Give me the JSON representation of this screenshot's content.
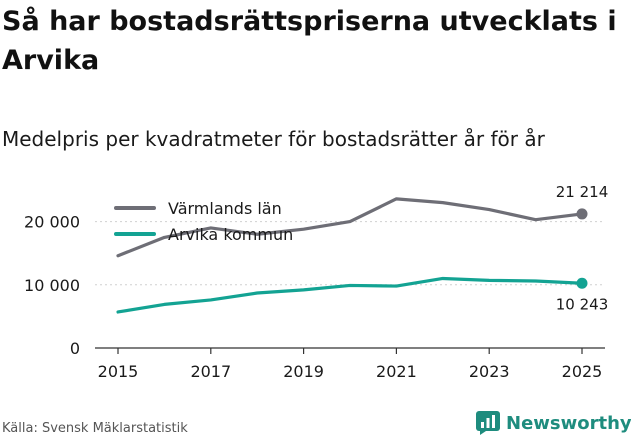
{
  "header": {
    "title": "Så har bostadsrättspriserna utvecklats i Arvika",
    "subtitle": "Medelpris per kvadratmeter för bostadsrätter år för år"
  },
  "footer": {
    "source": "Källa: Svensk Mäklarstatistik",
    "brand": "Newsworthy"
  },
  "colors": {
    "varmland": "#6e6e76",
    "arvika": "#13a393",
    "grid": "#d0d0d0",
    "axis": "#333333"
  },
  "chart_data": {
    "type": "line",
    "title": "Så har bostadsrättspriserna utvecklats i Arvika",
    "subtitle": "Medelpris per kvadratmeter för bostadsrätter år för år",
    "xlabel": "",
    "ylabel": "",
    "x": [
      2015,
      2016,
      2017,
      2018,
      2019,
      2020,
      2021,
      2022,
      2023,
      2024,
      2025
    ],
    "xticks": [
      "2015",
      "2017",
      "2019",
      "2021",
      "2023",
      "2025"
    ],
    "xlim": [
      2015,
      2025
    ],
    "yticks": [
      {
        "value": 0,
        "label": "0"
      },
      {
        "value": 10000,
        "label": "10 000"
      },
      {
        "value": 20000,
        "label": "20 000"
      }
    ],
    "ylim": [
      0,
      25000
    ],
    "legend_position": "top-left",
    "series": [
      {
        "name": "Värmlands län",
        "color": "#6e6e76",
        "values": [
          14600,
          17500,
          19000,
          18000,
          18800,
          20000,
          23600,
          23000,
          21900,
          20300,
          21214
        ],
        "end_label": "21 214",
        "end_label_position": "above"
      },
      {
        "name": "Arvika kommun",
        "color": "#13a393",
        "values": [
          5700,
          6900,
          7600,
          8700,
          9200,
          9900,
          9800,
          11000,
          10700,
          10600,
          10243
        ],
        "end_label": "10 243",
        "end_label_position": "below"
      }
    ]
  }
}
